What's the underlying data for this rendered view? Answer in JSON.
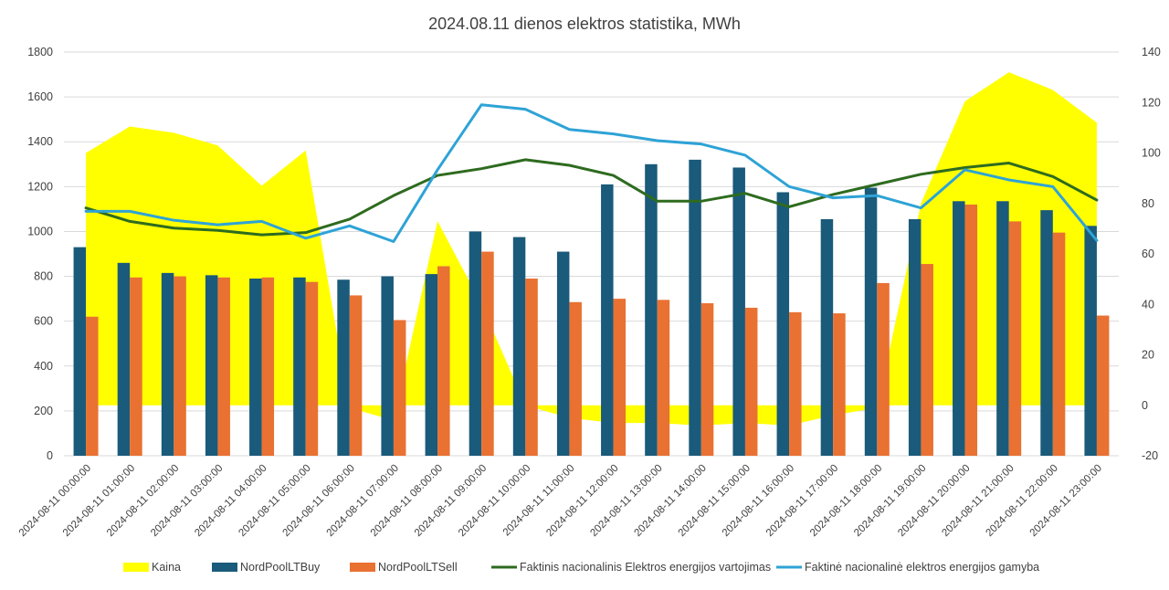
{
  "chart_data": {
    "type": "bar",
    "title": "2024.08.11 dienos elektros statistika, MWh",
    "categories": [
      "2024-08-11 00:00:00",
      "2024-08-11 01:00:00",
      "2024-08-11 02:00:00",
      "2024-08-11 03:00:00",
      "2024-08-11 04:00:00",
      "2024-08-11 05:00:00",
      "2024-08-11 06:00:00",
      "2024-08-11 07:00:00",
      "2024-08-11 08:00:00",
      "2024-08-11 09:00:00",
      "2024-08-11 10:00:00",
      "2024-08-11 11:00:00",
      "2024-08-11 12:00:00",
      "2024-08-11 13:00:00",
      "2024-08-11 14:00:00",
      "2024-08-11 15:00:00",
      "2024-08-11 16:00:00",
      "2024-08-11 17:00:00",
      "2024-08-11 18:00:00",
      "2024-08-11 19:00:00",
      "2024-08-11 20:00:00",
      "2024-08-11 21:00:00",
      "2024-08-11 22:00:00",
      "2024-08-11 23:00:00"
    ],
    "y_left": {
      "min": 0,
      "max": 1800,
      "ticks": [
        "0",
        "200",
        "400",
        "600",
        "800",
        "1000",
        "1200",
        "1400",
        "1600",
        "1800"
      ]
    },
    "y_right": {
      "min": -20,
      "max": 140,
      "ticks": [
        "-20",
        "0",
        "20",
        "40",
        "60",
        "80",
        "100",
        "120",
        "140"
      ]
    },
    "grid": true,
    "legend_position": "bottom",
    "series": [
      {
        "name": "Kaina",
        "type": "area",
        "axis": "right",
        "color": "#FFFF00",
        "values": [
          100,
          110.5,
          108,
          103,
          87,
          101,
          -1,
          -6,
          73,
          40,
          0,
          -5,
          -7,
          -7,
          -8,
          -7,
          -8,
          -4,
          -1,
          80,
          120.5,
          132,
          125,
          112
        ]
      },
      {
        "name": "NordPoolLTBuy",
        "type": "bar",
        "axis": "left",
        "color": "#1A5A7A",
        "values": [
          930,
          860,
          815,
          805,
          790,
          795,
          785,
          800,
          810,
          1000,
          975,
          910,
          1210,
          1300,
          1320,
          1285,
          1175,
          1055,
          1195,
          1055,
          1135,
          1135,
          1095,
          1025
        ]
      },
      {
        "name": "NordPoolLTSell",
        "type": "bar",
        "axis": "left",
        "color": "#E97132",
        "values": [
          620,
          795,
          800,
          795,
          795,
          775,
          715,
          605,
          845,
          910,
          790,
          685,
          700,
          695,
          680,
          660,
          640,
          635,
          770,
          855,
          1120,
          1045,
          995,
          625
        ]
      },
      {
        "name": "Faktinis nacionalinis Elektros energijos vartojimas",
        "type": "line",
        "axis": "left",
        "color": "#2E6B1F",
        "values": [
          1105,
          1045,
          1015,
          1005,
          985,
          995,
          1055,
          1160,
          1250,
          1280,
          1320,
          1295,
          1250,
          1135,
          1135,
          1170,
          1110,
          1165,
          1210,
          1255,
          1285,
          1305,
          1245,
          1140
        ]
      },
      {
        "name": "Faktinė nacionalinė elektros energijos gamyba",
        "type": "line",
        "axis": "left",
        "color": "#2EA3D6",
        "values": [
          1090,
          1090,
          1050,
          1030,
          1045,
          970,
          1025,
          955,
          1275,
          1565,
          1545,
          1455,
          1435,
          1405,
          1390,
          1340,
          1200,
          1150,
          1160,
          1105,
          1275,
          1230,
          1200,
          960
        ]
      }
    ]
  }
}
